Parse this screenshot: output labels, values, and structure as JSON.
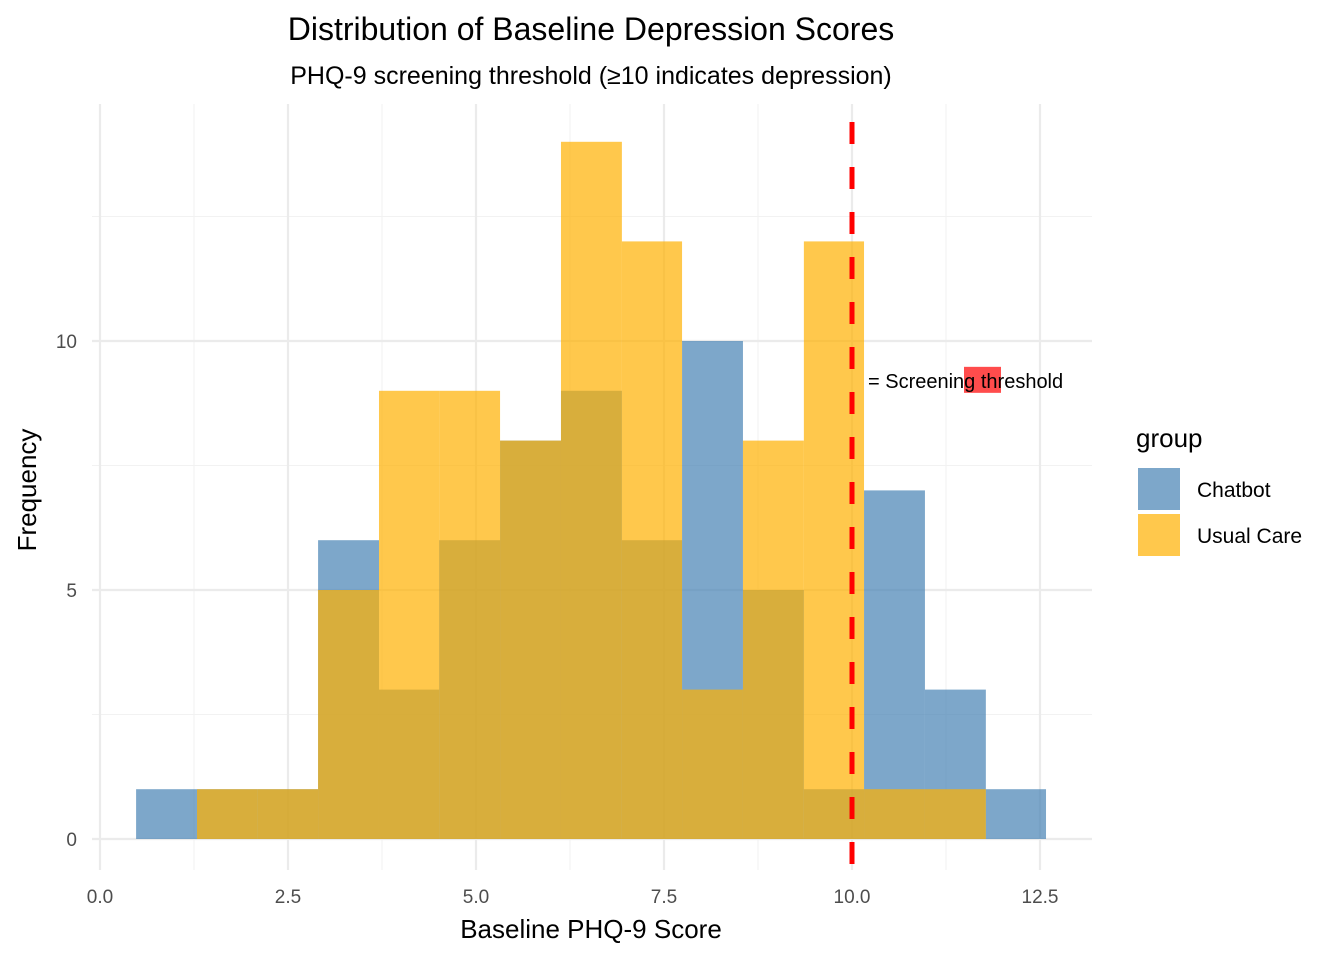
{
  "chart_data": {
    "type": "bar",
    "subtype": "overlapping-histogram",
    "title": "Distribution of Baseline Depression Scores",
    "subtitle": "PHQ-9 screening threshold (≥10 indicates depression)",
    "xlabel": "Baseline PHQ-9 Score",
    "ylabel": "Frequency",
    "xlim": [
      -0.1,
      13.2
    ],
    "ylim": [
      -0.6,
      14.7
    ],
    "x_ticks": [
      0.0,
      2.5,
      5.0,
      7.5,
      10.0,
      12.5
    ],
    "x_tick_labels": [
      "0.0",
      "2.5",
      "5.0",
      "7.5",
      "10.0",
      "12.5"
    ],
    "y_ticks": [
      0,
      5,
      10
    ],
    "y_tick_labels": [
      "0",
      "5",
      "10"
    ],
    "grid": true,
    "bin_edges": [
      0.48,
      1.29,
      2.09,
      2.9,
      3.71,
      4.51,
      5.32,
      6.13,
      6.94,
      7.74,
      8.55,
      9.36,
      10.16,
      10.97,
      11.78,
      12.58
    ],
    "series": [
      {
        "name": "Chatbot",
        "color": "#4682b4",
        "values": [
          1,
          1,
          1,
          6,
          3,
          6,
          8,
          9,
          6,
          10,
          5,
          1,
          7,
          3,
          1
        ]
      },
      {
        "name": "Usual Care",
        "color": "#ffb000",
        "values": [
          0,
          1,
          1,
          5,
          9,
          9,
          8,
          14,
          12,
          3,
          8,
          12,
          1,
          1,
          0
        ]
      }
    ],
    "opacity": 0.7,
    "threshold": {
      "x": 10,
      "color": "#ff0000",
      "style": "dashed",
      "label": "= Screening threshold",
      "label_y": 9.2
    },
    "legend": {
      "title": "group",
      "position": "right",
      "entries": [
        "Chatbot",
        "Usual Care"
      ]
    }
  }
}
